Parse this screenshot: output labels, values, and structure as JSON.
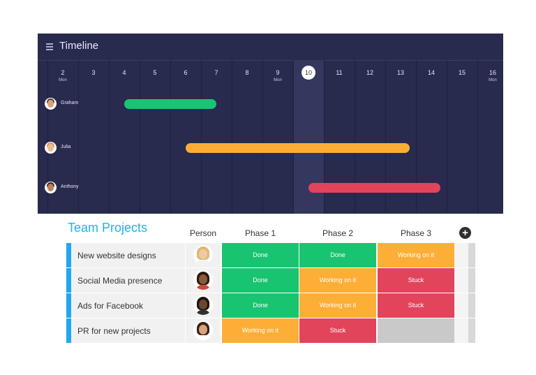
{
  "timeline": {
    "title": "Timeline",
    "days": [
      {
        "num": "2",
        "weekday": "Mon"
      },
      {
        "num": "3",
        "weekday": ""
      },
      {
        "num": "4",
        "weekday": ""
      },
      {
        "num": "5",
        "weekday": ""
      },
      {
        "num": "6",
        "weekday": ""
      },
      {
        "num": "7",
        "weekday": ""
      },
      {
        "num": "8",
        "weekday": ""
      },
      {
        "num": "9",
        "weekday": "Mon"
      },
      {
        "num": "10",
        "weekday": ""
      },
      {
        "num": "11",
        "weekday": ""
      },
      {
        "num": "12",
        "weekday": ""
      },
      {
        "num": "13",
        "weekday": ""
      },
      {
        "num": "14",
        "weekday": ""
      },
      {
        "num": "15",
        "weekday": ""
      },
      {
        "num": "16",
        "weekday": "Mon"
      }
    ],
    "today": "10",
    "people": [
      {
        "name": "Graham",
        "bar_start_day": 4,
        "bar_end_day": 7,
        "bar_color": "#1ac473"
      },
      {
        "name": "Julia",
        "bar_start_day": 6,
        "bar_end_day": 13.3,
        "bar_color": "#fbae33"
      },
      {
        "name": "Anthony",
        "bar_start_day": 10,
        "bar_end_day": 14.3,
        "bar_color": "#e2445c"
      }
    ]
  },
  "team": {
    "title": "Team Projects",
    "columns": {
      "person": "Person",
      "phase1": "Phase 1",
      "phase2": "Phase 2",
      "phase3": "Phase 3"
    },
    "rows": [
      {
        "name": "New website designs",
        "phase1": "Done",
        "phase2": "Done",
        "phase3": "Working on it"
      },
      {
        "name": "Social Media presence",
        "phase1": "Done",
        "phase2": "Working on it",
        "phase3": "Stuck"
      },
      {
        "name": "Ads for Facebook",
        "phase1": "Done",
        "phase2": "Working on it",
        "phase3": "Stuck"
      },
      {
        "name": "PR for new projects",
        "phase1": "Working on it",
        "phase2": "Stuck",
        "phase3": ""
      }
    ],
    "status_colors": {
      "Done": "#18c470",
      "Working on it": "#fcae37",
      "Stuck": "#e2445c",
      "": "#c9c9c9"
    }
  }
}
